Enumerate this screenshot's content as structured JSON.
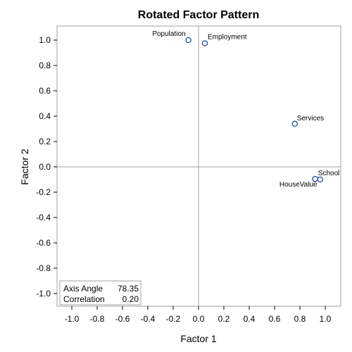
{
  "chart_data": {
    "type": "scatter",
    "title": "Rotated Factor Pattern",
    "xlabel": "Factor 1",
    "ylabel": "Factor 2",
    "xlim": [
      -1.1,
      1.1
    ],
    "ylim": [
      -1.1,
      1.1
    ],
    "x_ticks": [
      "-1.0",
      "-0.8",
      "-0.6",
      "-0.4",
      "-0.2",
      "0.0",
      "0.2",
      "0.4",
      "0.6",
      "0.8",
      "1.0"
    ],
    "y_ticks": [
      "1.0",
      "0.8",
      "0.6",
      "0.4",
      "0.2",
      "0.0",
      "-0.2",
      "-0.4",
      "-0.6",
      "-0.8",
      "-1.0"
    ],
    "reference_lines": {
      "x": 0,
      "y": 0
    },
    "points": [
      {
        "label": "Population",
        "x": -0.08,
        "y": 1.0
      },
      {
        "label": "Employment",
        "x": 0.05,
        "y": 0.975
      },
      {
        "label": "Services",
        "x": 0.76,
        "y": 0.34
      },
      {
        "label": "School",
        "x": 0.96,
        "y": -0.1
      },
      {
        "label": "HouseValue",
        "x": 0.92,
        "y": -0.095
      }
    ],
    "marker_color": "#1f4e9c",
    "inset": {
      "rows": [
        {
          "label": "Axis Angle",
          "value": "78.35"
        },
        {
          "label": "Correlation",
          "value": "0.20"
        }
      ]
    }
  }
}
